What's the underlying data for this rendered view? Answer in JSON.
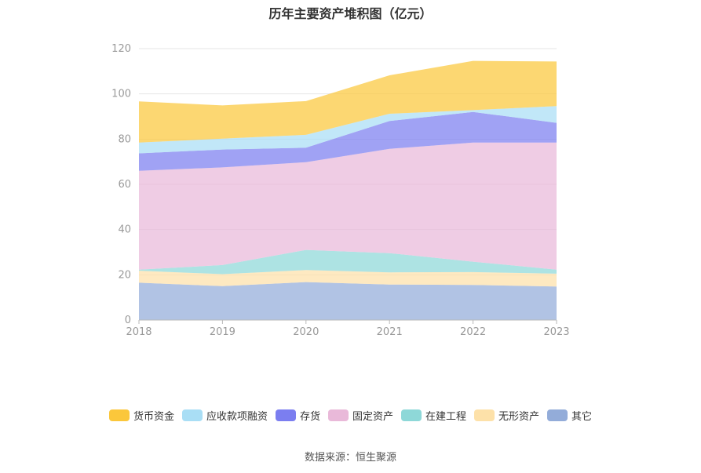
{
  "chart_data": {
    "type": "area",
    "stacked": true,
    "title": "历年主要资产堆积图（亿元）",
    "x": [
      "2018",
      "2019",
      "2020",
      "2021",
      "2022",
      "2023"
    ],
    "ylim": [
      0,
      120
    ],
    "yticks": [
      0,
      20,
      40,
      60,
      80,
      100,
      120
    ],
    "grid": true,
    "legend_position": "bottom",
    "series": [
      {
        "name": "其它",
        "color": "#93acd9",
        "values": [
          16.5,
          15.0,
          16.8,
          15.7,
          15.5,
          14.8
        ]
      },
      {
        "name": "无形资产",
        "color": "#fde1a9",
        "values": [
          5.3,
          5.3,
          5.3,
          5.4,
          5.7,
          5.7
        ]
      },
      {
        "name": "在建工程",
        "color": "#8ed8d8",
        "values": [
          0.5,
          4.0,
          8.9,
          8.5,
          4.6,
          1.8
        ]
      },
      {
        "name": "固定资产",
        "color": "#e9b9d9",
        "values": [
          43.7,
          43.2,
          38.8,
          46.1,
          52.7,
          56.2
        ]
      },
      {
        "name": "存货",
        "color": "#7b7ef0",
        "values": [
          7.7,
          7.9,
          6.4,
          12.3,
          13.5,
          8.7
        ]
      },
      {
        "name": "应收款项融资",
        "color": "#a9def5",
        "values": [
          4.8,
          4.8,
          5.7,
          3.2,
          0.8,
          7.4
        ]
      },
      {
        "name": "货币资金",
        "color": "#fbc73b",
        "values": [
          18.2,
          14.7,
          14.9,
          17.0,
          21.8,
          19.7
        ]
      }
    ]
  },
  "legend_order": [
    "货币资金",
    "应收款项融资",
    "存货",
    "固定资产",
    "在建工程",
    "无形资产",
    "其它"
  ],
  "source": "数据来源：恒生聚源"
}
